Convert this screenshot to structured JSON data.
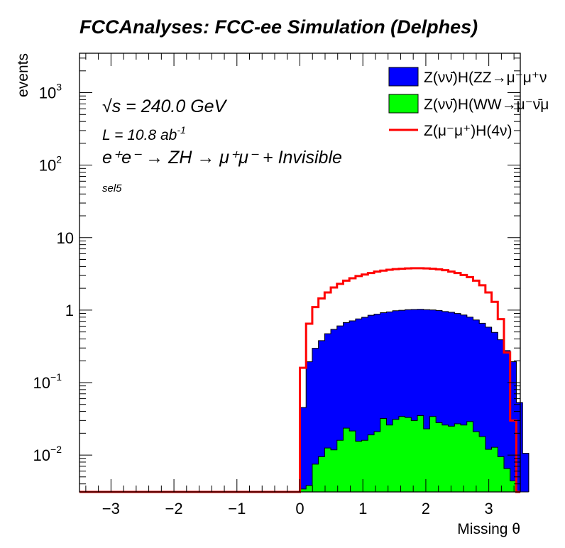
{
  "chart_data": {
    "type": "histogram",
    "title": "FCCAnalyses: FCC-ee Simulation (Delphes)",
    "xlabel": "Missing θ",
    "ylabel": "events",
    "xlim": [
      -3.5,
      3.5
    ],
    "ylim": [
      0.0031,
      3500
    ],
    "log_y": true,
    "x_ticks": [
      "−3",
      "−2",
      "−1",
      "0",
      "1",
      "2",
      "3"
    ],
    "y_ticks": [
      {
        "base": "10",
        "exp": "−2"
      },
      {
        "base": "10",
        "exp": "−1"
      },
      {
        "base": "1",
        "exp": ""
      },
      {
        "base": "10",
        "exp": ""
      },
      {
        "base": "10",
        "exp": "2"
      },
      {
        "base": "10",
        "exp": "3"
      }
    ],
    "annotations": {
      "sqrt_s": "√s = 240.0 GeV",
      "lumi_base": "L = 10.8 ab",
      "lumi_exp": "-1",
      "process": "e⁺e⁻ → ZH → μ⁺μ⁻ + Invisible",
      "selection": "sel5"
    },
    "legend_position": "top-right",
    "bin_width": 0.0982,
    "bin_start": 0.0,
    "series": [
      {
        "name": "Z(νν̄)H(ZZ→μ⁻μ⁺ν",
        "color": "#0000ff",
        "style": "stacked-fill",
        "values": [
          0.042,
          0.19,
          0.29,
          0.37,
          0.46,
          0.53,
          0.59,
          0.65,
          0.69,
          0.74,
          0.78,
          0.83,
          0.86,
          0.89,
          0.92,
          0.95,
          0.96,
          0.98,
          0.99,
          0.99,
          0.99,
          0.97,
          0.96,
          0.93,
          0.91,
          0.87,
          0.83,
          0.77,
          0.71,
          0.64,
          0.57,
          0.48,
          0.38,
          0.27,
          0.19,
          0.05,
          0.0075
        ]
      },
      {
        "name": "Z(νν̄)H(WW→μ⁻ν̄μ",
        "color": "#00ff00",
        "style": "stacked-fill",
        "values": [
          0.0034,
          0.0038,
          0.0075,
          0.0095,
          0.0125,
          0.0118,
          0.016,
          0.0235,
          0.0215,
          0.0155,
          0.016,
          0.019,
          0.021,
          0.032,
          0.026,
          0.031,
          0.034,
          0.033,
          0.03,
          0.035,
          0.023,
          0.034,
          0.028,
          0.026,
          0.025,
          0.027,
          0.026,
          0.029,
          0.021,
          0.018,
          0.012,
          0.0128,
          0.0095,
          0.0065,
          0.0044,
          0.0031,
          0.0031
        ]
      },
      {
        "name": "Z(μ⁻μ⁺)H(4ν)",
        "color": "#ff0000",
        "style": "line",
        "values": [
          0.16,
          0.65,
          1.1,
          1.45,
          1.75,
          2.05,
          2.3,
          2.55,
          2.75,
          2.95,
          3.1,
          3.25,
          3.4,
          3.5,
          3.6,
          3.68,
          3.72,
          3.76,
          3.78,
          3.78,
          3.76,
          3.72,
          3.65,
          3.55,
          3.4,
          3.25,
          3.05,
          2.85,
          2.55,
          2.2,
          1.75,
          1.3,
          0.75,
          0.26,
          0.03
        ]
      }
    ]
  }
}
